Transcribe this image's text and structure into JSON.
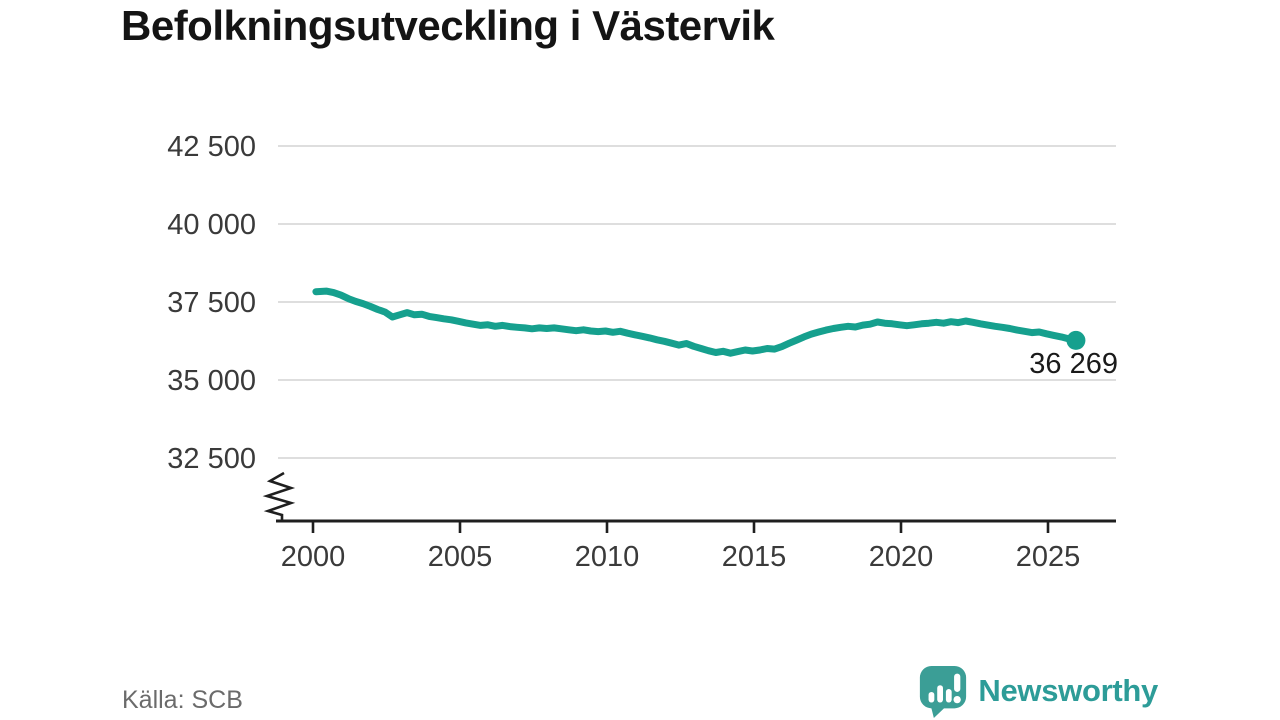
{
  "title": "Befolkningsutveckling i Västervik",
  "source": "Källa: SCB",
  "logo": {
    "text": "Newsworthy",
    "text_color": "#2d9c98",
    "icon_color": "#3b9e96",
    "icon_name": "newsworthy-bar-chart-bubble-icon"
  },
  "chart_data": {
    "type": "line",
    "title": "Befolkningsutveckling i Västervik",
    "xlabel": "",
    "ylabel": "",
    "grid": "horizontal-only",
    "axis_break": true,
    "line_color": "#16a08e",
    "grid_color": "#dedede",
    "axis_color": "#1f1f1f",
    "tick_label_color": "#3a3a3a",
    "end_label_color": "#1a1a1a",
    "xlim": [
      1998.8,
      2027.3
    ],
    "ylim": [
      31400,
      43300
    ],
    "y_ticks": [
      {
        "value": 42500,
        "label": "42 500"
      },
      {
        "value": 40000,
        "label": "40 000"
      },
      {
        "value": 37500,
        "label": "37 500"
      },
      {
        "value": 35000,
        "label": "35 000"
      },
      {
        "value": 32500,
        "label": "32 500"
      }
    ],
    "x_ticks": [
      {
        "value": 2000,
        "label": "2000"
      },
      {
        "value": 2005,
        "label": "2005"
      },
      {
        "value": 2010,
        "label": "2010"
      },
      {
        "value": 2015,
        "label": "2015"
      },
      {
        "value": 2020,
        "label": "2020"
      },
      {
        "value": 2025,
        "label": "2025"
      }
    ],
    "end_label": "36 269",
    "end_value": 36269,
    "series": [
      {
        "name": "Befolkning",
        "points": [
          [
            2000.1,
            37830
          ],
          [
            2000.45,
            37850
          ],
          [
            2000.7,
            37800
          ],
          [
            2000.95,
            37720
          ],
          [
            2001.2,
            37610
          ],
          [
            2001.45,
            37520
          ],
          [
            2001.7,
            37450
          ],
          [
            2001.95,
            37360
          ],
          [
            2002.2,
            37260
          ],
          [
            2002.45,
            37180
          ],
          [
            2002.7,
            37020
          ],
          [
            2002.95,
            37090
          ],
          [
            2003.2,
            37160
          ],
          [
            2003.45,
            37090
          ],
          [
            2003.7,
            37110
          ],
          [
            2003.95,
            37040
          ],
          [
            2004.2,
            37000
          ],
          [
            2004.45,
            36960
          ],
          [
            2004.7,
            36930
          ],
          [
            2004.95,
            36880
          ],
          [
            2005.2,
            36830
          ],
          [
            2005.45,
            36790
          ],
          [
            2005.7,
            36750
          ],
          [
            2005.95,
            36770
          ],
          [
            2006.2,
            36720
          ],
          [
            2006.45,
            36750
          ],
          [
            2006.7,
            36710
          ],
          [
            2006.95,
            36690
          ],
          [
            2007.2,
            36670
          ],
          [
            2007.45,
            36640
          ],
          [
            2007.7,
            36670
          ],
          [
            2007.95,
            36650
          ],
          [
            2008.2,
            36670
          ],
          [
            2008.45,
            36640
          ],
          [
            2008.7,
            36610
          ],
          [
            2008.95,
            36580
          ],
          [
            2009.2,
            36610
          ],
          [
            2009.45,
            36570
          ],
          [
            2009.7,
            36550
          ],
          [
            2009.95,
            36570
          ],
          [
            2010.2,
            36530
          ],
          [
            2010.45,
            36560
          ],
          [
            2010.7,
            36500
          ],
          [
            2010.95,
            36450
          ],
          [
            2011.2,
            36400
          ],
          [
            2011.45,
            36350
          ],
          [
            2011.7,
            36290
          ],
          [
            2011.95,
            36240
          ],
          [
            2012.2,
            36180
          ],
          [
            2012.45,
            36120
          ],
          [
            2012.7,
            36170
          ],
          [
            2012.95,
            36080
          ],
          [
            2013.2,
            36010
          ],
          [
            2013.45,
            35940
          ],
          [
            2013.7,
            35880
          ],
          [
            2013.95,
            35920
          ],
          [
            2014.2,
            35860
          ],
          [
            2014.45,
            35910
          ],
          [
            2014.7,
            35960
          ],
          [
            2014.95,
            35930
          ],
          [
            2015.2,
            35960
          ],
          [
            2015.45,
            36010
          ],
          [
            2015.7,
            35990
          ],
          [
            2015.95,
            36070
          ],
          [
            2016.2,
            36180
          ],
          [
            2016.45,
            36280
          ],
          [
            2016.7,
            36380
          ],
          [
            2016.95,
            36470
          ],
          [
            2017.2,
            36540
          ],
          [
            2017.45,
            36600
          ],
          [
            2017.7,
            36650
          ],
          [
            2017.95,
            36690
          ],
          [
            2018.2,
            36720
          ],
          [
            2018.45,
            36700
          ],
          [
            2018.7,
            36760
          ],
          [
            2018.95,
            36790
          ],
          [
            2019.2,
            36860
          ],
          [
            2019.45,
            36820
          ],
          [
            2019.7,
            36800
          ],
          [
            2019.95,
            36770
          ],
          [
            2020.2,
            36740
          ],
          [
            2020.45,
            36770
          ],
          [
            2020.7,
            36800
          ],
          [
            2020.95,
            36820
          ],
          [
            2021.2,
            36850
          ],
          [
            2021.45,
            36820
          ],
          [
            2021.7,
            36870
          ],
          [
            2021.95,
            36840
          ],
          [
            2022.2,
            36890
          ],
          [
            2022.45,
            36850
          ],
          [
            2022.7,
            36800
          ],
          [
            2022.95,
            36760
          ],
          [
            2023.2,
            36720
          ],
          [
            2023.45,
            36690
          ],
          [
            2023.7,
            36650
          ],
          [
            2023.95,
            36600
          ],
          [
            2024.2,
            36560
          ],
          [
            2024.45,
            36520
          ],
          [
            2024.7,
            36540
          ],
          [
            2024.95,
            36480
          ],
          [
            2025.2,
            36430
          ],
          [
            2025.45,
            36380
          ],
          [
            2025.7,
            36320
          ],
          [
            2025.95,
            36269
          ]
        ]
      }
    ]
  }
}
